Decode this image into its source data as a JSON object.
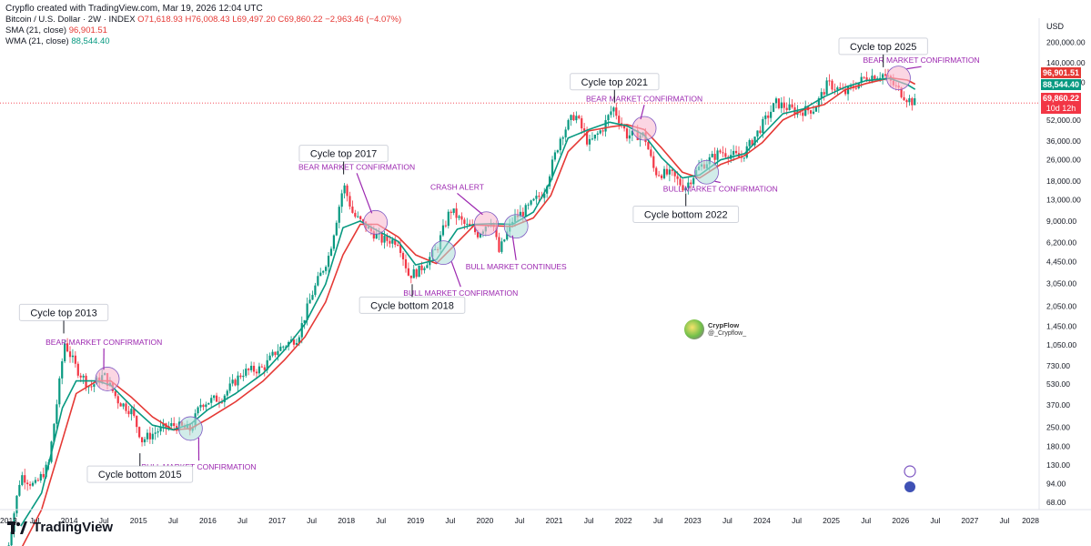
{
  "header": {
    "created_by": "Crypflo created with TradingView.com, Mar 19, 2026 12:04 UTC",
    "symbol": "Bitcoin / U.S. Dollar · 2W · INDEX",
    "open": "O71,618.93",
    "high": "H76,008.43",
    "low": "L69,497.20",
    "close": "C69,860.22",
    "change": "−2,963.46 (−4.07%)",
    "sma_label": "SMA (21, close)",
    "sma_value": "96,901.51",
    "wma_label": "WMA (21, close)",
    "wma_value": "88,544.40"
  },
  "currency": "USD",
  "price_tags": {
    "sma": "96,901.51",
    "wma": "88,544.40",
    "last": "69,860.22",
    "countdown": "10d 12h"
  },
  "footer": {
    "brand": "TradingView"
  },
  "watermark": {
    "name": "CrypFlow",
    "handle": "@_Crypflow_"
  },
  "colors": {
    "up": "#089981",
    "down": "#f23645",
    "sma": "#e53935",
    "wma": "#089981",
    "annotation": "#9c27b0",
    "bear_circle": "#f8bbd0",
    "bull_circle": "#b2dfdb"
  },
  "chart_data": {
    "type": "candlestick",
    "y_scale": "log",
    "ylim": [
      60,
      260000
    ],
    "xlim": [
      2013.0,
      2028.0
    ],
    "y_ticks": [
      200000,
      140000,
      100000,
      52000,
      36000,
      26000,
      18000,
      13000,
      9000,
      6200,
      4450,
      3050,
      2050,
      1450,
      1050,
      730,
      530,
      370,
      250,
      180,
      130,
      94,
      68
    ],
    "y_tick_labels": [
      "200,000.00",
      "140,000.00",
      "100,000.00",
      "52,000.00",
      "36,000.00",
      "26,000.00",
      "18,000.00",
      "13,000.00",
      "9,000.00",
      "6,200.00",
      "4,450.00",
      "3,050.00",
      "2,050.00",
      "1,450.00",
      "1,050.00",
      "730.00",
      "530.00",
      "370.00",
      "250.00",
      "180.00",
      "130.00",
      "94.00",
      "68.00"
    ],
    "x_ticks": [
      {
        "t": 2013.0,
        "label": "2013"
      },
      {
        "t": 2013.5,
        "label": "Jul"
      },
      {
        "t": 2014.0,
        "label": "2014"
      },
      {
        "t": 2014.5,
        "label": "Jul"
      },
      {
        "t": 2015.0,
        "label": "2015"
      },
      {
        "t": 2015.5,
        "label": "Jul"
      },
      {
        "t": 2016.0,
        "label": "2016"
      },
      {
        "t": 2016.5,
        "label": "Jul"
      },
      {
        "t": 2017.0,
        "label": "2017"
      },
      {
        "t": 2017.5,
        "label": "Jul"
      },
      {
        "t": 2018.0,
        "label": "2018"
      },
      {
        "t": 2018.5,
        "label": "Jul"
      },
      {
        "t": 2019.0,
        "label": "2019"
      },
      {
        "t": 2019.5,
        "label": "Jul"
      },
      {
        "t": 2020.0,
        "label": "2020"
      },
      {
        "t": 2020.5,
        "label": "Jul"
      },
      {
        "t": 2021.0,
        "label": "2021"
      },
      {
        "t": 2021.5,
        "label": "Jul"
      },
      {
        "t": 2022.0,
        "label": "2022"
      },
      {
        "t": 2022.5,
        "label": "Jul"
      },
      {
        "t": 2023.0,
        "label": "2023"
      },
      {
        "t": 2023.5,
        "label": "Jul"
      },
      {
        "t": 2024.0,
        "label": "2024"
      },
      {
        "t": 2024.5,
        "label": "Jul"
      },
      {
        "t": 2025.0,
        "label": "2025"
      },
      {
        "t": 2025.5,
        "label": "Jul"
      },
      {
        "t": 2026.0,
        "label": "2026"
      },
      {
        "t": 2026.5,
        "label": "Jul"
      },
      {
        "t": 2027.0,
        "label": "2027"
      },
      {
        "t": 2027.5,
        "label": "Jul"
      },
      {
        "t": 2028.0,
        "label": "2028"
      }
    ],
    "price_path": [
      [
        2013.05,
        20
      ],
      [
        2013.3,
        110
      ],
      [
        2013.5,
        90
      ],
      [
        2013.7,
        130
      ],
      [
        2013.85,
        500
      ],
      [
        2013.93,
        1100
      ],
      [
        2014.1,
        700
      ],
      [
        2014.3,
        500
      ],
      [
        2014.5,
        620
      ],
      [
        2014.7,
        400
      ],
      [
        2014.9,
        330
      ],
      [
        2015.05,
        200
      ],
      [
        2015.3,
        240
      ],
      [
        2015.5,
        260
      ],
      [
        2015.75,
        240
      ],
      [
        2015.9,
        380
      ],
      [
        2016.2,
        420
      ],
      [
        2016.5,
        650
      ],
      [
        2016.8,
        700
      ],
      [
        2017.0,
        960
      ],
      [
        2017.3,
        1200
      ],
      [
        2017.5,
        2500
      ],
      [
        2017.75,
        5000
      ],
      [
        2017.96,
        17000
      ],
      [
        2018.1,
        10000
      ],
      [
        2018.3,
        8000
      ],
      [
        2018.5,
        6500
      ],
      [
        2018.75,
        6400
      ],
      [
        2018.9,
        3500
      ],
      [
        2019.05,
        3800
      ],
      [
        2019.3,
        5500
      ],
      [
        2019.5,
        11000
      ],
      [
        2019.7,
        8500
      ],
      [
        2019.9,
        7200
      ],
      [
        2020.1,
        9500
      ],
      [
        2020.2,
        5200
      ],
      [
        2020.4,
        9200
      ],
      [
        2020.6,
        11000
      ],
      [
        2020.85,
        15000
      ],
      [
        2021.1,
        40000
      ],
      [
        2021.3,
        58000
      ],
      [
        2021.5,
        34000
      ],
      [
        2021.7,
        45000
      ],
      [
        2021.85,
        65000
      ],
      [
        2022.05,
        40000
      ],
      [
        2022.3,
        40000
      ],
      [
        2022.45,
        21000
      ],
      [
        2022.7,
        20000
      ],
      [
        2022.88,
        16000
      ],
      [
        2023.1,
        23000
      ],
      [
        2023.4,
        30000
      ],
      [
        2023.7,
        27000
      ],
      [
        2023.95,
        43000
      ],
      [
        2024.2,
        70000
      ],
      [
        2024.5,
        60000
      ],
      [
        2024.75,
        63000
      ],
      [
        2024.95,
        98000
      ],
      [
        2025.2,
        83000
      ],
      [
        2025.5,
        110000
      ],
      [
        2025.75,
        115000
      ],
      [
        2025.9,
        95000
      ],
      [
        2026.1,
        75000
      ],
      [
        2026.21,
        69860
      ]
    ],
    "sma_path": [
      [
        2013.3,
        30
      ],
      [
        2013.6,
        60
      ],
      [
        2013.9,
        200
      ],
      [
        2014.1,
        450
      ],
      [
        2014.4,
        560
      ],
      [
        2014.6,
        560
      ],
      [
        2014.9,
        420
      ],
      [
        2015.2,
        300
      ],
      [
        2015.5,
        240
      ],
      [
        2015.75,
        245
      ],
      [
        2016.0,
        290
      ],
      [
        2016.4,
        390
      ],
      [
        2016.8,
        560
      ],
      [
        2017.1,
        800
      ],
      [
        2017.4,
        1200
      ],
      [
        2017.7,
        2200
      ],
      [
        2017.95,
        5000
      ],
      [
        2018.2,
        8500
      ],
      [
        2018.45,
        8500
      ],
      [
        2018.75,
        6800
      ],
      [
        2019.0,
        5000
      ],
      [
        2019.3,
        4300
      ],
      [
        2019.6,
        6200
      ],
      [
        2019.85,
        8400
      ],
      [
        2020.1,
        8300
      ],
      [
        2020.4,
        8200
      ],
      [
        2020.7,
        9500
      ],
      [
        2020.95,
        14000
      ],
      [
        2021.2,
        30000
      ],
      [
        2021.5,
        43000
      ],
      [
        2021.8,
        46000
      ],
      [
        2022.05,
        48000
      ],
      [
        2022.3,
        44000
      ],
      [
        2022.55,
        32000
      ],
      [
        2022.85,
        21000
      ],
      [
        2023.1,
        19000
      ],
      [
        2023.4,
        24000
      ],
      [
        2023.75,
        28000
      ],
      [
        2024.0,
        35000
      ],
      [
        2024.3,
        52000
      ],
      [
        2024.6,
        62000
      ],
      [
        2024.9,
        68000
      ],
      [
        2025.2,
        88000
      ],
      [
        2025.5,
        98000
      ],
      [
        2025.85,
        108000
      ],
      [
        2026.1,
        104000
      ],
      [
        2026.21,
        96901
      ]
    ],
    "wma_path": [
      [
        2013.3,
        45
      ],
      [
        2013.6,
        80
      ],
      [
        2013.9,
        350
      ],
      [
        2014.1,
        560
      ],
      [
        2014.4,
        560
      ],
      [
        2014.6,
        520
      ],
      [
        2014.9,
        360
      ],
      [
        2015.2,
        260
      ],
      [
        2015.5,
        240
      ],
      [
        2015.75,
        265
      ],
      [
        2016.0,
        340
      ],
      [
        2016.4,
        450
      ],
      [
        2016.8,
        640
      ],
      [
        2017.1,
        950
      ],
      [
        2017.4,
        1500
      ],
      [
        2017.7,
        3000
      ],
      [
        2017.95,
        8000
      ],
      [
        2018.2,
        9000
      ],
      [
        2018.45,
        7600
      ],
      [
        2018.75,
        6300
      ],
      [
        2019.0,
        4200
      ],
      [
        2019.3,
        4600
      ],
      [
        2019.6,
        7800
      ],
      [
        2019.85,
        8500
      ],
      [
        2020.1,
        8600
      ],
      [
        2020.4,
        8500
      ],
      [
        2020.7,
        10500
      ],
      [
        2020.95,
        18000
      ],
      [
        2021.2,
        38000
      ],
      [
        2021.5,
        44000
      ],
      [
        2021.8,
        50000
      ],
      [
        2022.05,
        47000
      ],
      [
        2022.3,
        40000
      ],
      [
        2022.55,
        27000
      ],
      [
        2022.85,
        19000
      ],
      [
        2023.1,
        20000
      ],
      [
        2023.4,
        26000
      ],
      [
        2023.75,
        29000
      ],
      [
        2024.0,
        40000
      ],
      [
        2024.3,
        58000
      ],
      [
        2024.6,
        63000
      ],
      [
        2024.9,
        78000
      ],
      [
        2025.2,
        92000
      ],
      [
        2025.5,
        103000
      ],
      [
        2025.85,
        107000
      ],
      [
        2026.1,
        96000
      ],
      [
        2026.21,
        88544
      ]
    ],
    "callouts": [
      {
        "label": "Cycle top 2013",
        "t": 2013.92,
        "y": 1200,
        "pos": "above"
      },
      {
        "label": "Cycle bottom 2015",
        "t": 2015.02,
        "y": 170,
        "pos": "below"
      },
      {
        "label": "Cycle top 2017",
        "t": 2017.96,
        "y": 19000,
        "pos": "above"
      },
      {
        "label": "Cycle bottom 2018",
        "t": 2018.95,
        "y": 3200,
        "pos": "below"
      },
      {
        "label": "Cycle top 2021",
        "t": 2021.87,
        "y": 66000,
        "pos": "above"
      },
      {
        "label": "Cycle bottom 2022",
        "t": 2022.9,
        "y": 15500,
        "pos": "below"
      },
      {
        "label": "Cycle top 2025",
        "t": 2025.75,
        "y": 122000,
        "pos": "above"
      }
    ],
    "annotations": [
      {
        "label": "BEAR MARKET CONFIRMATION",
        "t": 2014.55,
        "y": 580,
        "circle": "bear",
        "label_t": 2014.5,
        "label_y": 1050
      },
      {
        "label": "BULL MARKET CONFIRMATION",
        "t": 2015.75,
        "y": 245,
        "circle": "bull",
        "label_t": 2015.87,
        "label_y": 120
      },
      {
        "label": "BEAR MARKET CONFIRMATION",
        "t": 2018.42,
        "y": 8800,
        "circle": "bear",
        "label_t": 2018.15,
        "label_y": 22000
      },
      {
        "label": "BULL MARKET CONFIRMATION",
        "t": 2019.4,
        "y": 5200,
        "circle": "bull",
        "label_t": 2019.65,
        "label_y": 2450
      },
      {
        "label": "CRASH ALERT",
        "t": 2020.02,
        "y": 8600,
        "circle": "bear",
        "label_t": 2019.6,
        "label_y": 15500
      },
      {
        "label": "BULL MARKET CONTINUES",
        "t": 2020.45,
        "y": 8200,
        "circle": "bull",
        "label_t": 2020.45,
        "label_y": 3900
      },
      {
        "label": "BEAR MARKET CONFIRMATION",
        "t": 2022.3,
        "y": 45000,
        "circle": "bear",
        "label_t": 2022.3,
        "label_y": 72000
      },
      {
        "label": "BULL MARKET CONFIRMATION",
        "t": 2023.2,
        "y": 21000,
        "circle": "bull",
        "label_t": 2023.4,
        "label_y": 15000
      },
      {
        "label": "BEAR MARKET CONFIRMATION",
        "t": 2025.97,
        "y": 108000,
        "circle": "bear",
        "label_t": 2026.3,
        "label_y": 140000
      }
    ],
    "last_price": 69860.22
  }
}
